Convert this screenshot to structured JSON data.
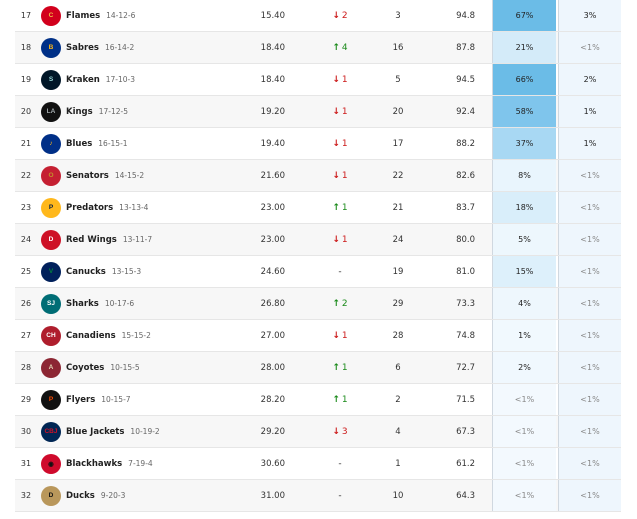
{
  "rows": [
    {
      "rank": "17",
      "team": "Flames",
      "record": "14-12-6",
      "avg": "15.40",
      "dir": "down",
      "move": "2",
      "wk": "3",
      "pts": "94.8",
      "p1": "67%",
      "p2": "3%",
      "logo": {
        "icon": "flames-logo-icon",
        "text": "C",
        "bg": "#d2001c",
        "fg": "#f1be48"
      },
      "shade": "#6bbce7"
    },
    {
      "rank": "18",
      "team": "Sabres",
      "record": "16-14-2",
      "avg": "18.40",
      "dir": "up",
      "move": "4",
      "wk": "16",
      "pts": "87.8",
      "p1": "21%",
      "p2": "<1%",
      "logo": {
        "icon": "sabres-logo-icon",
        "text": "B",
        "bg": "#003087",
        "fg": "#fcb514"
      },
      "shade": "#d4ebf9"
    },
    {
      "rank": "19",
      "team": "Kraken",
      "record": "17-10-3",
      "avg": "18.40",
      "dir": "down",
      "move": "1",
      "wk": "5",
      "pts": "94.5",
      "p1": "66%",
      "p2": "2%",
      "logo": {
        "icon": "kraken-logo-icon",
        "text": "S",
        "bg": "#001628",
        "fg": "#99d9d9"
      },
      "shade": "#6bbce7"
    },
    {
      "rank": "20",
      "team": "Kings",
      "record": "17-12-5",
      "avg": "19.20",
      "dir": "down",
      "move": "1",
      "wk": "20",
      "pts": "92.4",
      "p1": "58%",
      "p2": "1%",
      "logo": {
        "icon": "kings-logo-icon",
        "text": "LA",
        "bg": "#111111",
        "fg": "#a2aaad"
      },
      "shade": "#7fc5ec"
    },
    {
      "rank": "21",
      "team": "Blues",
      "record": "16-15-1",
      "avg": "19.40",
      "dir": "down",
      "move": "1",
      "wk": "17",
      "pts": "88.2",
      "p1": "37%",
      "p2": "1%",
      "logo": {
        "icon": "blues-logo-icon",
        "text": "♪",
        "bg": "#002f87",
        "fg": "#fcb514"
      },
      "shade": "#a8d8f3"
    },
    {
      "rank": "22",
      "team": "Senators",
      "record": "14-15-2",
      "avg": "21.60",
      "dir": "down",
      "move": "1",
      "wk": "22",
      "pts": "82.6",
      "p1": "8%",
      "p2": "<1%",
      "logo": {
        "icon": "senators-logo-icon",
        "text": "O",
        "bg": "#c52032",
        "fg": "#c2912c"
      },
      "shade": "#e9f5fd"
    },
    {
      "rank": "23",
      "team": "Predators",
      "record": "13-13-4",
      "avg": "23.00",
      "dir": "up",
      "move": "1",
      "wk": "21",
      "pts": "83.7",
      "p1": "18%",
      "p2": "<1%",
      "logo": {
        "icon": "predators-logo-icon",
        "text": "P",
        "bg": "#ffb81c",
        "fg": "#041e42"
      },
      "shade": "#d9eefa"
    },
    {
      "rank": "24",
      "team": "Red Wings",
      "record": "13-11-7",
      "avg": "23.00",
      "dir": "down",
      "move": "1",
      "wk": "24",
      "pts": "80.0",
      "p1": "5%",
      "p2": "<1%",
      "logo": {
        "icon": "red-wings-logo-icon",
        "text": "D",
        "bg": "#ce1126",
        "fg": "#ffffff"
      },
      "shade": "#edf7fd"
    },
    {
      "rank": "25",
      "team": "Canucks",
      "record": "13-15-3",
      "avg": "24.60",
      "dir": "flat",
      "move": "-",
      "wk": "19",
      "pts": "81.0",
      "p1": "15%",
      "p2": "<1%",
      "logo": {
        "icon": "canucks-logo-icon",
        "text": "V",
        "bg": "#00205b",
        "fg": "#00843d"
      },
      "shade": "#ddf0fb"
    },
    {
      "rank": "26",
      "team": "Sharks",
      "record": "10-17-6",
      "avg": "26.80",
      "dir": "up",
      "move": "2",
      "wk": "29",
      "pts": "73.3",
      "p1": "4%",
      "p2": "<1%",
      "logo": {
        "icon": "sharks-logo-icon",
        "text": "SJ",
        "bg": "#006d75",
        "fg": "#ffffff"
      },
      "shade": "#eef7fd"
    },
    {
      "rank": "27",
      "team": "Canadiens",
      "record": "15-15-2",
      "avg": "27.00",
      "dir": "down",
      "move": "1",
      "wk": "28",
      "pts": "74.8",
      "p1": "1%",
      "p2": "<1%",
      "logo": {
        "icon": "canadiens-logo-icon",
        "text": "CH",
        "bg": "#af1e2d",
        "fg": "#ffffff"
      },
      "shade": "#f1f9fe"
    },
    {
      "rank": "28",
      "team": "Coyotes",
      "record": "10-15-5",
      "avg": "28.00",
      "dir": "up",
      "move": "1",
      "wk": "6",
      "pts": "72.7",
      "p1": "2%",
      "p2": "<1%",
      "logo": {
        "icon": "coyotes-logo-icon",
        "text": "A",
        "bg": "#8c2633",
        "fg": "#e2d6b5"
      },
      "shade": "#f0f8fe"
    },
    {
      "rank": "29",
      "team": "Flyers",
      "record": "10-15-7",
      "avg": "28.20",
      "dir": "up",
      "move": "1",
      "wk": "2",
      "pts": "71.5",
      "p1": "<1%",
      "p2": "<1%",
      "logo": {
        "icon": "flyers-logo-icon",
        "text": "P",
        "bg": "#111111",
        "fg": "#f74902"
      },
      "shade": "#f3f9fe"
    },
    {
      "rank": "30",
      "team": "Blue Jackets",
      "record": "10-19-2",
      "avg": "29.20",
      "dir": "down",
      "move": "3",
      "wk": "4",
      "pts": "67.3",
      "p1": "<1%",
      "p2": "<1%",
      "logo": {
        "icon": "blue-jackets-logo-icon",
        "text": "CBJ",
        "bg": "#002654",
        "fg": "#ce1126"
      },
      "shade": "#f3f9fe"
    },
    {
      "rank": "31",
      "team": "Blackhawks",
      "record": "7-19-4",
      "avg": "30.60",
      "dir": "flat",
      "move": "-",
      "wk": "1",
      "pts": "61.2",
      "p1": "<1%",
      "p2": "<1%",
      "logo": {
        "icon": "blackhawks-logo-icon",
        "text": "◉",
        "bg": "#cf0a2c",
        "fg": "#111111"
      },
      "shade": "#f3f9fe"
    },
    {
      "rank": "32",
      "team": "Ducks",
      "record": "9-20-3",
      "avg": "31.00",
      "dir": "flat",
      "move": "-",
      "wk": "10",
      "pts": "64.3",
      "p1": "<1%",
      "p2": "<1%",
      "logo": {
        "icon": "ducks-logo-icon",
        "text": "D",
        "bg": "#b9975b",
        "fg": "#111111"
      },
      "shade": "#f3f9fe"
    }
  ]
}
